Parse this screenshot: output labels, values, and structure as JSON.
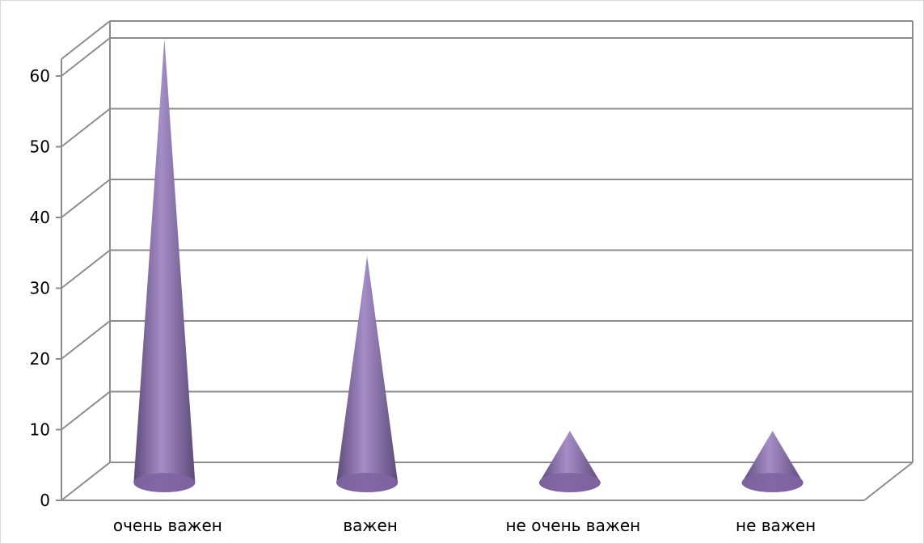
{
  "chart_data": {
    "type": "bar",
    "style": "3d-cone",
    "categories": [
      "очень важен",
      "важен",
      "не очень важен",
      "не важен"
    ],
    "values": [
      62,
      31,
      6,
      6
    ],
    "ylim": [
      0,
      60
    ],
    "yticks": [
      0,
      10,
      20,
      30,
      40,
      50,
      60
    ],
    "title": "",
    "xlabel": "",
    "ylabel": "",
    "grid": true,
    "legend": "none",
    "colors": {
      "cone_fill": "#8064a2",
      "cone_light": "#a58ec7",
      "cone_dark": "#5e4a7a",
      "gridline": "#8c8c8c",
      "wall": "#ffffff"
    }
  }
}
